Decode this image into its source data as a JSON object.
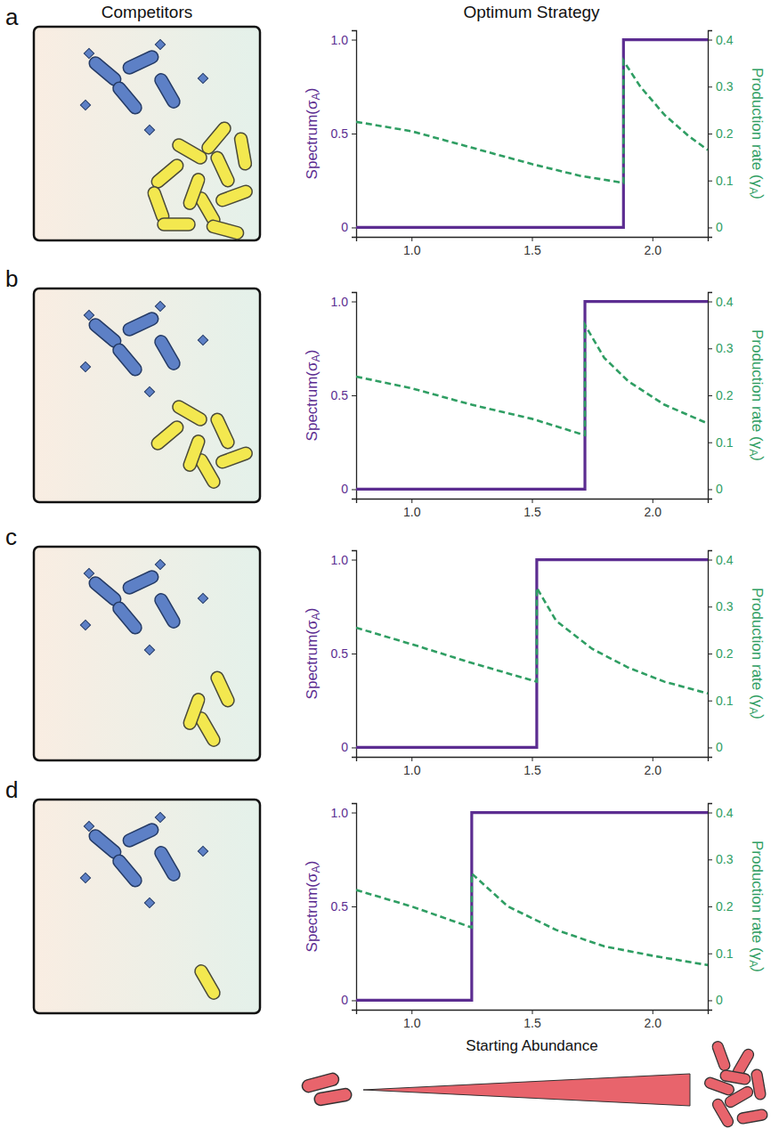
{
  "headers": [
    "Competitors",
    "Optimum Strategy"
  ],
  "chart_data": [
    {
      "type": "line",
      "panel": "a",
      "competitors": 11,
      "ylabel": "Spectrum(σA)",
      "y2label": "Production rate (γA)",
      "xlim": [
        0.77,
        2.23
      ],
      "xticks": [
        {
          "value": 1,
          "label": "1.0"
        },
        {
          "value": 1.5,
          "label": "1.5"
        },
        {
          "value": 2,
          "label": "2.0"
        }
      ],
      "ylim": [
        -0.05,
        1.05
      ],
      "yticks": [
        0,
        0.5,
        {
          "value": 1,
          "label": "1.0"
        }
      ],
      "y2lim": [
        -0.02,
        0.42
      ],
      "y2ticks": [
        0,
        0.1,
        0.2,
        0.3,
        0.4
      ],
      "series": [
        {
          "color": "#5c2d91",
          "line_style": "solid",
          "x": [
            0.77,
            1.88,
            1.88,
            2.23
          ],
          "values": [
            0,
            0,
            1,
            1
          ]
        },
        {
          "color": "#2f9e63",
          "line_style": "dashed",
          "axis": "y2",
          "x": [
            0.77,
            1.0,
            1.25,
            1.5,
            1.7,
            1.88,
            1.88,
            1.95,
            2.05,
            2.15,
            2.23
          ],
          "values": [
            0.225,
            0.205,
            0.17,
            0.135,
            0.11,
            0.095,
            0.355,
            0.3,
            0.24,
            0.195,
            0.165
          ]
        }
      ]
    },
    {
      "type": "line",
      "panel": "b",
      "competitors": 6,
      "ylabel": "Spectrum(σA)",
      "y2label": "Production rate (γA)",
      "xlim": [
        0.77,
        2.23
      ],
      "xticks": [
        {
          "value": 1,
          "label": "1.0"
        },
        {
          "value": 1.5,
          "label": "1.5"
        },
        {
          "value": 2,
          "label": "2.0"
        }
      ],
      "ylim": [
        -0.05,
        1.05
      ],
      "yticks": [
        0,
        0.5,
        {
          "value": 1,
          "label": "1.0"
        }
      ],
      "y2lim": [
        -0.02,
        0.42
      ],
      "y2ticks": [
        0,
        0.1,
        0.2,
        0.3,
        0.4
      ],
      "series": [
        {
          "color": "#5c2d91",
          "line_style": "solid",
          "x": [
            0.77,
            1.72,
            1.72,
            2.23
          ],
          "values": [
            0,
            0,
            1,
            1
          ]
        },
        {
          "color": "#2f9e63",
          "line_style": "dashed",
          "axis": "y2",
          "x": [
            0.77,
            1.0,
            1.25,
            1.5,
            1.72,
            1.72,
            1.8,
            1.9,
            2.05,
            2.23
          ],
          "values": [
            0.24,
            0.215,
            0.18,
            0.15,
            0.115,
            0.35,
            0.28,
            0.23,
            0.18,
            0.14
          ]
        }
      ]
    },
    {
      "type": "line",
      "panel": "c",
      "competitors": 3,
      "ylabel": "Spectrum(σA)",
      "y2label": "Production rate (γA)",
      "xlim": [
        0.77,
        2.23
      ],
      "xticks": [
        {
          "value": 1,
          "label": "1.0"
        },
        {
          "value": 1.5,
          "label": "1.5"
        },
        {
          "value": 2,
          "label": "2.0"
        }
      ],
      "ylim": [
        -0.05,
        1.05
      ],
      "yticks": [
        0,
        0.5,
        {
          "value": 1,
          "label": "1.0"
        }
      ],
      "y2lim": [
        -0.02,
        0.42
      ],
      "y2ticks": [
        0,
        0.1,
        0.2,
        0.3,
        0.4
      ],
      "series": [
        {
          "color": "#5c2d91",
          "line_style": "solid",
          "x": [
            0.77,
            1.52,
            1.52,
            2.23
          ],
          "values": [
            0,
            0,
            1,
            1
          ]
        },
        {
          "color": "#2f9e63",
          "line_style": "dashed",
          "axis": "y2",
          "x": [
            0.77,
            1.0,
            1.25,
            1.52,
            1.52,
            1.6,
            1.75,
            1.9,
            2.05,
            2.23
          ],
          "values": [
            0.255,
            0.22,
            0.18,
            0.14,
            0.34,
            0.27,
            0.21,
            0.17,
            0.14,
            0.115
          ]
        }
      ]
    },
    {
      "type": "line",
      "panel": "d",
      "competitors": 1,
      "ylabel": "Spectrum(σA)",
      "y2label": "Production rate (γA)",
      "xlabel": "Starting Abundance",
      "xlim": [
        0.77,
        2.23
      ],
      "xticks": [
        {
          "value": 1,
          "label": "1.0"
        },
        {
          "value": 1.5,
          "label": "1.5"
        },
        {
          "value": 2,
          "label": "2.0"
        }
      ],
      "ylim": [
        -0.05,
        1.05
      ],
      "yticks": [
        0,
        0.5,
        {
          "value": 1,
          "label": "1.0"
        }
      ],
      "y2lim": [
        -0.02,
        0.42
      ],
      "y2ticks": [
        0,
        0.1,
        0.2,
        0.3,
        0.4
      ],
      "series": [
        {
          "color": "#5c2d91",
          "line_style": "solid",
          "x": [
            0.77,
            1.25,
            1.25,
            2.23
          ],
          "values": [
            0,
            0,
            1,
            1
          ]
        },
        {
          "color": "#2f9e63",
          "line_style": "dashed",
          "axis": "y2",
          "x": [
            0.77,
            1.0,
            1.25,
            1.25,
            1.4,
            1.6,
            1.8,
            2.0,
            2.23
          ],
          "values": [
            0.235,
            0.2,
            0.155,
            0.27,
            0.2,
            0.15,
            0.115,
            0.095,
            0.075
          ]
        }
      ]
    }
  ]
}
